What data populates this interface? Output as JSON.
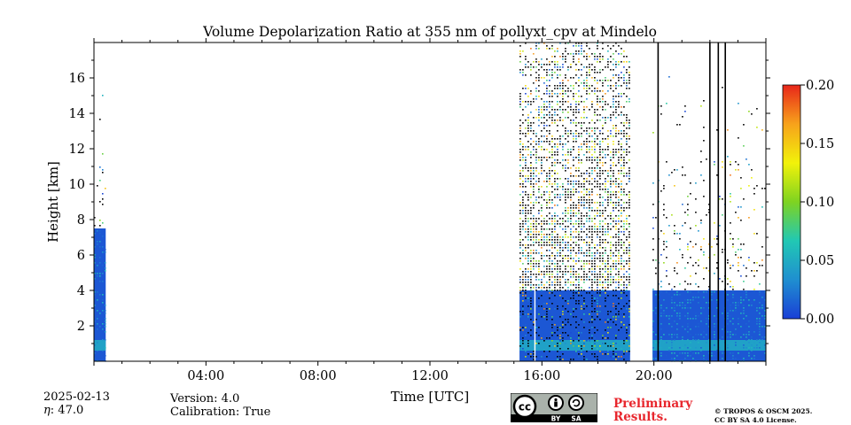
{
  "chart_data": {
    "type": "heatmap",
    "title": "Volume Depolarization Ratio at 355 nm of pollyxt_cpv at Mindelo",
    "xlabel": "Time [UTC]",
    "ylabel": "Height [km]",
    "xlim_hours": [
      0,
      24
    ],
    "ylim_km": [
      0,
      18
    ],
    "x_ticks": [
      {
        "hour": 4,
        "label": "04:00"
      },
      {
        "hour": 8,
        "label": "08:00"
      },
      {
        "hour": 12,
        "label": "12:00"
      },
      {
        "hour": 16,
        "label": "16:00"
      },
      {
        "hour": 20,
        "label": "20:00"
      }
    ],
    "y_ticks": [
      {
        "km": 2,
        "label": "2"
      },
      {
        "km": 4,
        "label": "4"
      },
      {
        "km": 6,
        "label": "6"
      },
      {
        "km": 8,
        "label": "8"
      },
      {
        "km": 10,
        "label": "10"
      },
      {
        "km": 12,
        "label": "12"
      },
      {
        "km": 14,
        "label": "14"
      },
      {
        "km": 16,
        "label": "16"
      }
    ],
    "colorbar": {
      "range": [
        0.0,
        0.2
      ],
      "ticks": [
        {
          "value": 0.0,
          "label": "0.00"
        },
        {
          "value": 0.05,
          "label": "0.05"
        },
        {
          "value": 0.1,
          "label": "0.10"
        },
        {
          "value": 0.15,
          "label": "0.15"
        },
        {
          "value": 0.2,
          "label": "0.20"
        }
      ],
      "colormap": [
        "#1a3fd6",
        "#1f8fd0",
        "#21c8b4",
        "#7ed321",
        "#f2f20a",
        "#f7a21b",
        "#e8261a"
      ]
    },
    "data_segments": [
      {
        "start_hour": 0.0,
        "end_hour": 0.42,
        "signal_top_km": 7.5,
        "noise_top_km": 17,
        "density": 0.25
      },
      {
        "start_hour": 15.2,
        "end_hour": 19.15,
        "signal_top_km": 4.0,
        "noise_top_km": 18,
        "density": 0.85
      },
      {
        "start_hour": 19.95,
        "end_hour": 24.0,
        "signal_top_km": 4.0,
        "noise_top_km": 17,
        "density": 0.3
      }
    ],
    "dropout_lines_hours": [
      15.75,
      20.15,
      22.0,
      22.3,
      22.55
    ],
    "grid": false
  },
  "footer": {
    "date": "2025-02-13",
    "eta": ": 47.0",
    "version": "Version: 4.0",
    "calibration": "Calibration: True",
    "preliminary": "Preliminary",
    "results": "Results.",
    "copyright_1": "© TROPOS & OSCM 2025.",
    "copyright_2": "CC BY SA 4.0 License.",
    "license_badge": {
      "cc": "cc",
      "by": "BY",
      "sa": "SA"
    }
  }
}
